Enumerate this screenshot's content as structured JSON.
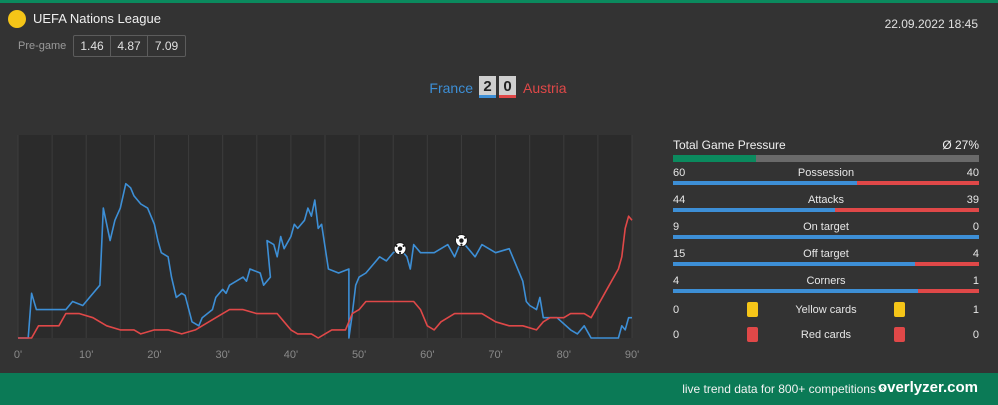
{
  "header": {
    "league": "UEFA Nations League",
    "datetime": "22.09.2022 18:45",
    "pregame_label": "Pre-game",
    "odds": [
      "1.46",
      "4.87",
      "7.09"
    ]
  },
  "match": {
    "home": "France",
    "away": "Austria",
    "home_score": "2",
    "away_score": "0"
  },
  "colors": {
    "home": "#3d8fd6",
    "away": "#e04848",
    "accent": "#0b8a5e",
    "yellow_card": "#f5c518",
    "red_card": "#e04848"
  },
  "chart_data": {
    "type": "line",
    "xlabel": "",
    "ylabel": "",
    "xlim": [
      0,
      90
    ],
    "ylim": [
      0,
      100
    ],
    "grid": true,
    "x_ticks": [
      "0'",
      "10'",
      "20'",
      "30'",
      "40'",
      "50'",
      "60'",
      "70'",
      "80'",
      "90'"
    ],
    "series": [
      {
        "name": "France",
        "points": [
          [
            0,
            0
          ],
          [
            1.5,
            0
          ],
          [
            2,
            22
          ],
          [
            2.7,
            14
          ],
          [
            7,
            14
          ],
          [
            8,
            18
          ],
          [
            9.5,
            16
          ],
          [
            10.5,
            20
          ],
          [
            12,
            26
          ],
          [
            12.5,
            64
          ],
          [
            13.5,
            48
          ],
          [
            14.2,
            58
          ],
          [
            15,
            64
          ],
          [
            15.8,
            76
          ],
          [
            16.5,
            74
          ],
          [
            17,
            70
          ],
          [
            18,
            66
          ],
          [
            19,
            64
          ],
          [
            19.5,
            60
          ],
          [
            20,
            56
          ],
          [
            20.5,
            48
          ],
          [
            21,
            42
          ],
          [
            22,
            40
          ],
          [
            22.5,
            30
          ],
          [
            23.2,
            20
          ],
          [
            24,
            22
          ],
          [
            24.5,
            21
          ],
          [
            25.5,
            8
          ],
          [
            26.5,
            6
          ],
          [
            27,
            10
          ],
          [
            28.5,
            14
          ],
          [
            29,
            20
          ],
          [
            30,
            24
          ],
          [
            30.5,
            22
          ],
          [
            31,
            26
          ],
          [
            33,
            30
          ],
          [
            33.5,
            28
          ],
          [
            34,
            34
          ],
          [
            35.5,
            32
          ],
          [
            36,
            26
          ],
          [
            37,
            30
          ],
          [
            36.5,
            48
          ],
          [
            37.5,
            46
          ],
          [
            38,
            40
          ],
          [
            38.5,
            50
          ],
          [
            39,
            44
          ],
          [
            40,
            50
          ],
          [
            40.5,
            56
          ],
          [
            41,
            54
          ],
          [
            42,
            58
          ],
          [
            42.5,
            64
          ],
          [
            43,
            60
          ],
          [
            43.5,
            68
          ],
          [
            44,
            54
          ],
          [
            44.5,
            56
          ],
          [
            45.5,
            34
          ],
          [
            47,
            32
          ],
          [
            48.5,
            34
          ],
          [
            48.5,
            0
          ],
          [
            49,
            12
          ],
          [
            49.5,
            26
          ],
          [
            50,
            30
          ],
          [
            51,
            32
          ],
          [
            52,
            36
          ],
          [
            53,
            40
          ],
          [
            54,
            38
          ],
          [
            55,
            42
          ],
          [
            56,
            44
          ],
          [
            57,
            40
          ],
          [
            57.5,
            34
          ],
          [
            58,
            46
          ],
          [
            59,
            42
          ],
          [
            61,
            42
          ],
          [
            63,
            46
          ],
          [
            64,
            40
          ],
          [
            64.5,
            44
          ],
          [
            65,
            48
          ],
          [
            66,
            44
          ],
          [
            67,
            40
          ],
          [
            68,
            46
          ],
          [
            70,
            42
          ],
          [
            72,
            44
          ],
          [
            73,
            36
          ],
          [
            74,
            28
          ],
          [
            74.5,
            18
          ],
          [
            75,
            16
          ],
          [
            76,
            14
          ],
          [
            76.5,
            20
          ],
          [
            77,
            10
          ],
          [
            79,
            10
          ],
          [
            81,
            4
          ],
          [
            82,
            2
          ],
          [
            83,
            6
          ],
          [
            84,
            0
          ],
          [
            88,
            0
          ],
          [
            88.5,
            6
          ],
          [
            89,
            4
          ],
          [
            89.5,
            10
          ],
          [
            91,
            10
          ]
        ]
      },
      {
        "name": "Austria",
        "points": [
          [
            0,
            0
          ],
          [
            2,
            0
          ],
          [
            3,
            6
          ],
          [
            6,
            6
          ],
          [
            7,
            12
          ],
          [
            9,
            12
          ],
          [
            11,
            10
          ],
          [
            12,
            8
          ],
          [
            13,
            6
          ],
          [
            15,
            4
          ],
          [
            17,
            4
          ],
          [
            18,
            2
          ],
          [
            20,
            4
          ],
          [
            22,
            4
          ],
          [
            24,
            2
          ],
          [
            26,
            4
          ],
          [
            27,
            6
          ],
          [
            29,
            10
          ],
          [
            31,
            14
          ],
          [
            33,
            14
          ],
          [
            35,
            12
          ],
          [
            38,
            12
          ],
          [
            39,
            8
          ],
          [
            40,
            4
          ],
          [
            41,
            2
          ],
          [
            43,
            2
          ],
          [
            44,
            0
          ],
          [
            45,
            2
          ],
          [
            46,
            4
          ],
          [
            48,
            4
          ],
          [
            49,
            12
          ],
          [
            50,
            14
          ],
          [
            51,
            18
          ],
          [
            55,
            18
          ],
          [
            58,
            18
          ],
          [
            59,
            14
          ],
          [
            60,
            6
          ],
          [
            61,
            4
          ],
          [
            62,
            8
          ],
          [
            64,
            12
          ],
          [
            68,
            12
          ],
          [
            70,
            8
          ],
          [
            72,
            6
          ],
          [
            74,
            6
          ],
          [
            76,
            4
          ],
          [
            77,
            8
          ],
          [
            78,
            10
          ],
          [
            80,
            10
          ],
          [
            81,
            12
          ],
          [
            83,
            12
          ],
          [
            84,
            10
          ],
          [
            85,
            16
          ],
          [
            86,
            22
          ],
          [
            87,
            28
          ],
          [
            88,
            34
          ],
          [
            88.5,
            40
          ],
          [
            89,
            54
          ],
          [
            89.5,
            60
          ],
          [
            90,
            58
          ],
          [
            91,
            58
          ]
        ]
      }
    ],
    "goals": [
      {
        "team": "France",
        "minute": 56,
        "y": 44
      },
      {
        "team": "France",
        "minute": 65,
        "y": 48
      }
    ]
  },
  "stats": {
    "pressure": {
      "label": "Total Game Pressure",
      "value": "Ø 27%",
      "fraction": 0.27
    },
    "rows": [
      {
        "home": "60",
        "label": "Possession",
        "away": "40",
        "home_fraction": 0.6
      },
      {
        "home": "44",
        "label": "Attacks",
        "away": "39",
        "home_fraction": 0.53
      },
      {
        "home": "9",
        "label": "On target",
        "away": "0",
        "home_fraction": 1.0
      },
      {
        "home": "15",
        "label": "Off target",
        "away": "4",
        "home_fraction": 0.79
      },
      {
        "home": "4",
        "label": "Corners",
        "away": "1",
        "home_fraction": 0.8
      }
    ],
    "cards": [
      {
        "home": "0",
        "label": "Yellow cards",
        "away": "1",
        "type": "yellow"
      },
      {
        "home": "0",
        "label": "Red cards",
        "away": "0",
        "type": "red"
      }
    ]
  },
  "footer": {
    "text": "live trend data for 800+ competitions »",
    "brand": "overlyzer.com"
  }
}
